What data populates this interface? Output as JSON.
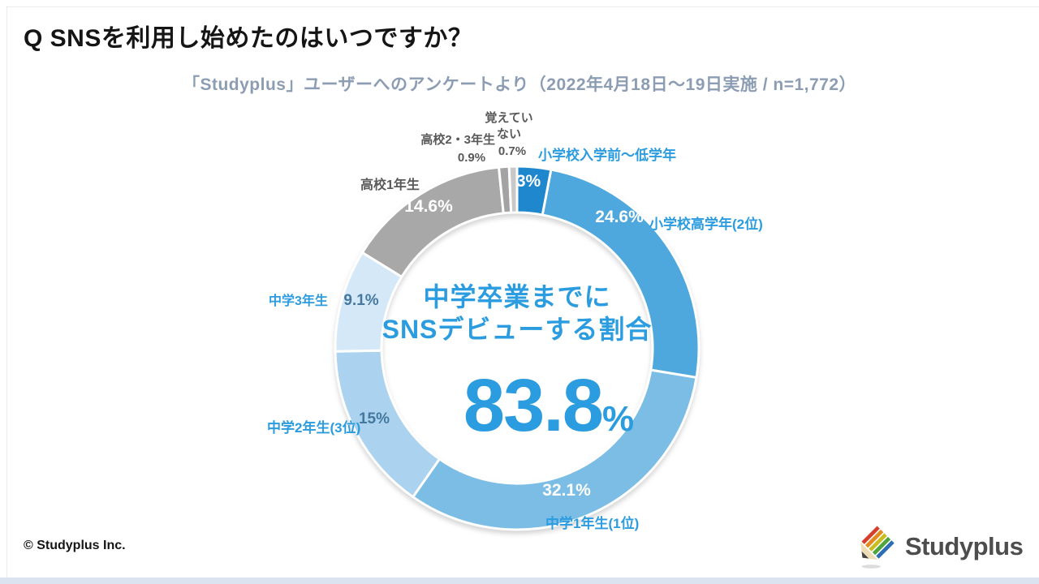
{
  "header": {
    "title": "Q SNSを利用し始めたのはいつですか？",
    "subtitle": "「Studyplus」ユーザーへのアンケートより（2022年4月18日～19日実施 / n=1,772）"
  },
  "chart_data": {
    "type": "pie",
    "donut": true,
    "title": "Q SNSを利用し始めたのはいつですか？",
    "start_angle_deg": 0,
    "direction": "clockwise",
    "gap_color": "#ffffff",
    "segments": [
      {
        "id": "pre-elementary",
        "label": "小学校入学前～低学年",
        "value": 3,
        "value_label": "3%",
        "color": "#1e87cd"
      },
      {
        "id": "upper-elementary",
        "label": "小学校高学年(2位)",
        "value": 24.6,
        "value_label": "24.6%",
        "color": "#4ea7dd"
      },
      {
        "id": "jhs-year1",
        "label": "中学1年生(1位)",
        "value": 32.1,
        "value_label": "32.1%",
        "color": "#7cbde5"
      },
      {
        "id": "jhs-year2",
        "label": "中学2年生(3位)",
        "value": 15,
        "value_label": "15%",
        "color": "#abd2ee"
      },
      {
        "id": "jhs-year3",
        "label": "中学3年生",
        "value": 9.1,
        "value_label": "9.1%",
        "color": "#d4e8f7"
      },
      {
        "id": "hs-year1",
        "label": "高校1年生",
        "value": 14.6,
        "value_label": "14.6%",
        "color": "#a8a8a8"
      },
      {
        "id": "hs-year2-3",
        "label": "高校2・3年生",
        "value": 0.9,
        "value_label": "0.9%",
        "color": "#a3a3a3"
      },
      {
        "id": "dont-remember",
        "label": "覚えていない",
        "value": 0.7,
        "value_label": "0.7%",
        "color": "#c8c8c8"
      }
    ],
    "center": {
      "line1": "中学卒業までに",
      "line2": "SNSデビューする割合",
      "big_value": "83.8",
      "big_unit": "%"
    }
  },
  "footer": {
    "copyright": "© Studyplus Inc.",
    "logo_text": "Studyplus"
  },
  "colors": {
    "accent_blue": "#2b9ce0",
    "label_gray": "#595959",
    "muted_value_blue": "#45789f",
    "subtitle_gray": "#8c9db3",
    "bottom_bar": "#dbe3f0"
  }
}
